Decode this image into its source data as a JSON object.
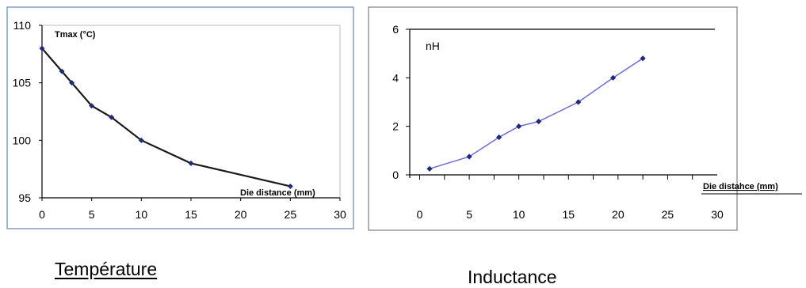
{
  "chart_data": [
    {
      "type": "line",
      "ylabel": "Tmax (°C)",
      "xlabel": "Die distance (mm)",
      "x": [
        0,
        2,
        3,
        5,
        7,
        10,
        15,
        25
      ],
      "series": [
        {
          "values": [
            108,
            106,
            105,
            103,
            102,
            100,
            98,
            96
          ]
        }
      ],
      "xlim": [
        0,
        30
      ],
      "ylim": [
        95,
        110
      ],
      "xticks": [
        "0",
        "5",
        "10",
        "15",
        "20",
        "25",
        "30"
      ],
      "yticks": [
        "95",
        "100",
        "105",
        "110"
      ],
      "grid": false,
      "line_color": "#1a1a1a",
      "marker_color": "#1f2a7a",
      "caption": "Température"
    },
    {
      "type": "line",
      "ylabel": "nH",
      "xlabel": "Die distahce (mm)",
      "x": [
        1,
        5,
        8,
        10,
        12,
        16,
        19.5,
        22.5
      ],
      "series": [
        {
          "values": [
            0.25,
            0.75,
            1.55,
            2.0,
            2.2,
            3.0,
            4.0,
            4.8
          ]
        }
      ],
      "xlim": [
        -1,
        30
      ],
      "ylim": [
        0,
        6
      ],
      "xticks": [
        "0",
        "5",
        "10",
        "15",
        "20",
        "25",
        "30"
      ],
      "yticks": [
        "0",
        "2",
        "4",
        "6"
      ],
      "grid": false,
      "line_color": "#6b6bd6",
      "marker_color": "#1f2a7a",
      "caption": "Inductance"
    }
  ]
}
